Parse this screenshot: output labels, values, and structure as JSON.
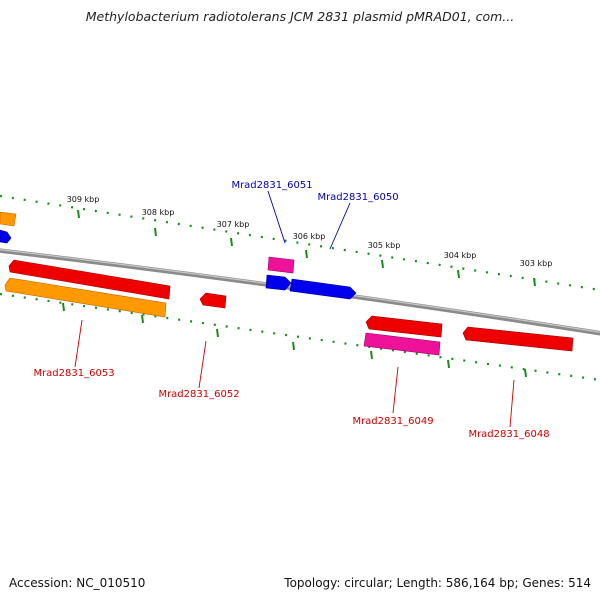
{
  "title": "Methylobacterium radiotolerans JCM 2831 plasmid pMRAD01, com...",
  "footer": {
    "accession": "Accession: NC_010510",
    "summary": "Topology: circular; Length: 586,164 bp; Genes: 514"
  },
  "colors": {
    "backbone": "#8a8a8a",
    "tick": "#1a8a1a",
    "cds_red": "#ee0000",
    "cds_orange": "#ff9900",
    "cds_pink": "#ee1199",
    "cds_blue": "#0000ee",
    "label_red": "#cc0000",
    "label_blue": "#0000aa"
  },
  "ticks": [
    "309 kbp",
    "308 kbp",
    "307 kbp",
    "306 kbp",
    "305 kbp",
    "304 kbp",
    "303 kbp"
  ],
  "genes": [
    {
      "name": "Mrad2831_6051",
      "color": "label_blue"
    },
    {
      "name": "Mrad2831_6050",
      "color": "label_blue"
    },
    {
      "name": "Mrad2831_6053",
      "color": "label_red"
    },
    {
      "name": "Mrad2831_6052",
      "color": "label_red"
    },
    {
      "name": "Mrad2831_6049",
      "color": "label_red"
    },
    {
      "name": "Mrad2831_6048",
      "color": "label_red"
    }
  ]
}
